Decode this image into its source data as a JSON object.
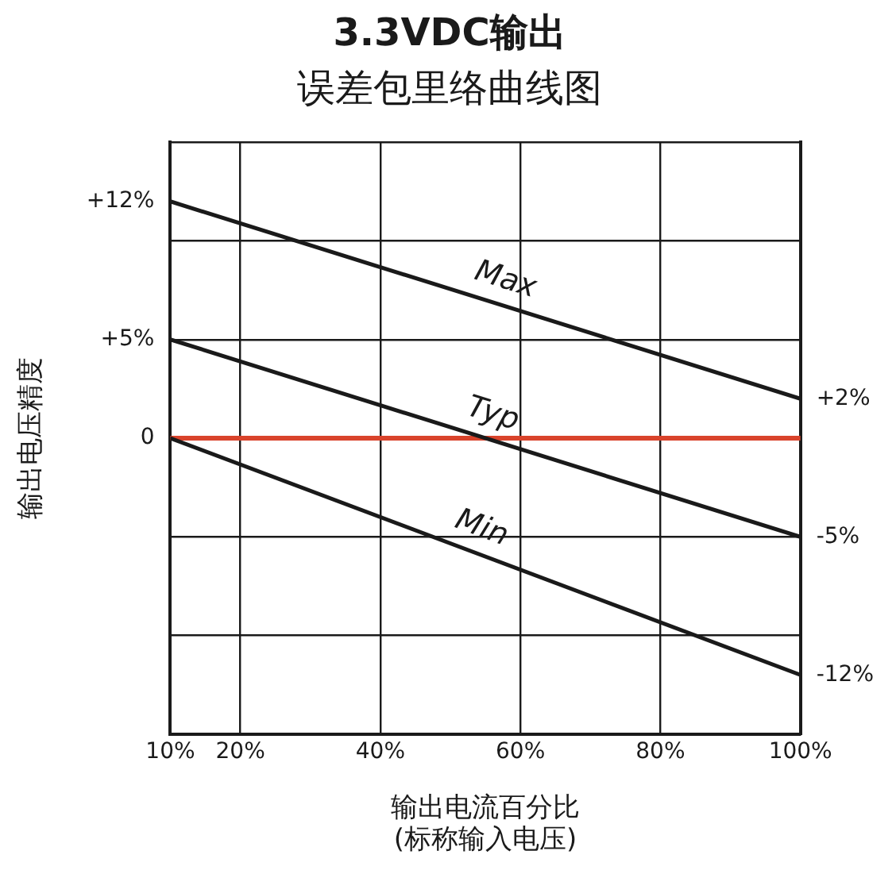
{
  "chart_data": {
    "type": "line",
    "title": "3.3VDC输出",
    "subtitle": "误差包里络曲线图",
    "xlabel": "输出电流百分比\n(标称输入电压)",
    "ylabel": "输出电压精度",
    "x": [
      10,
      100
    ],
    "series": [
      {
        "name": "Max",
        "color": "#1a1a1a",
        "values": [
          12,
          2
        ]
      },
      {
        "name": "Typ",
        "color": "#1a1a1a",
        "values": [
          5,
          -5
        ]
      },
      {
        "name": "Min",
        "color": "#1a1a1a",
        "values": [
          0,
          -12
        ]
      }
    ],
    "xlim": [
      10,
      100
    ],
    "xticks": [
      {
        "value": 10,
        "label": "10%"
      },
      {
        "value": 20,
        "label": "20%"
      },
      {
        "value": 40,
        "label": "40%"
      },
      {
        "value": 60,
        "label": "60%"
      },
      {
        "value": 80,
        "label": "80%"
      },
      {
        "value": 100,
        "label": "100%"
      }
    ],
    "ylim": [
      -15,
      15
    ],
    "yticks": [
      {
        "value": 15,
        "label": null
      },
      {
        "value": 12,
        "label": "+12%"
      },
      {
        "value": 10,
        "label": null
      },
      {
        "value": 5,
        "label": "+5%"
      },
      {
        "value": 0,
        "label": "0"
      },
      {
        "value": -5,
        "label": null
      },
      {
        "value": -10,
        "label": null
      },
      {
        "value": -15,
        "label": null
      }
    ],
    "y2lim": [
      -15,
      15
    ],
    "y2ticks": [
      {
        "value": 2,
        "label": "+2%"
      },
      {
        "value": -5,
        "label": "-5%"
      },
      {
        "value": -12,
        "label": "-12%"
      }
    ],
    "ref_lines": [
      {
        "axis": "y",
        "value": 0,
        "color": "#d9432b"
      }
    ],
    "grid": true,
    "legend": false,
    "marker": "none",
    "line_style": "solid"
  }
}
